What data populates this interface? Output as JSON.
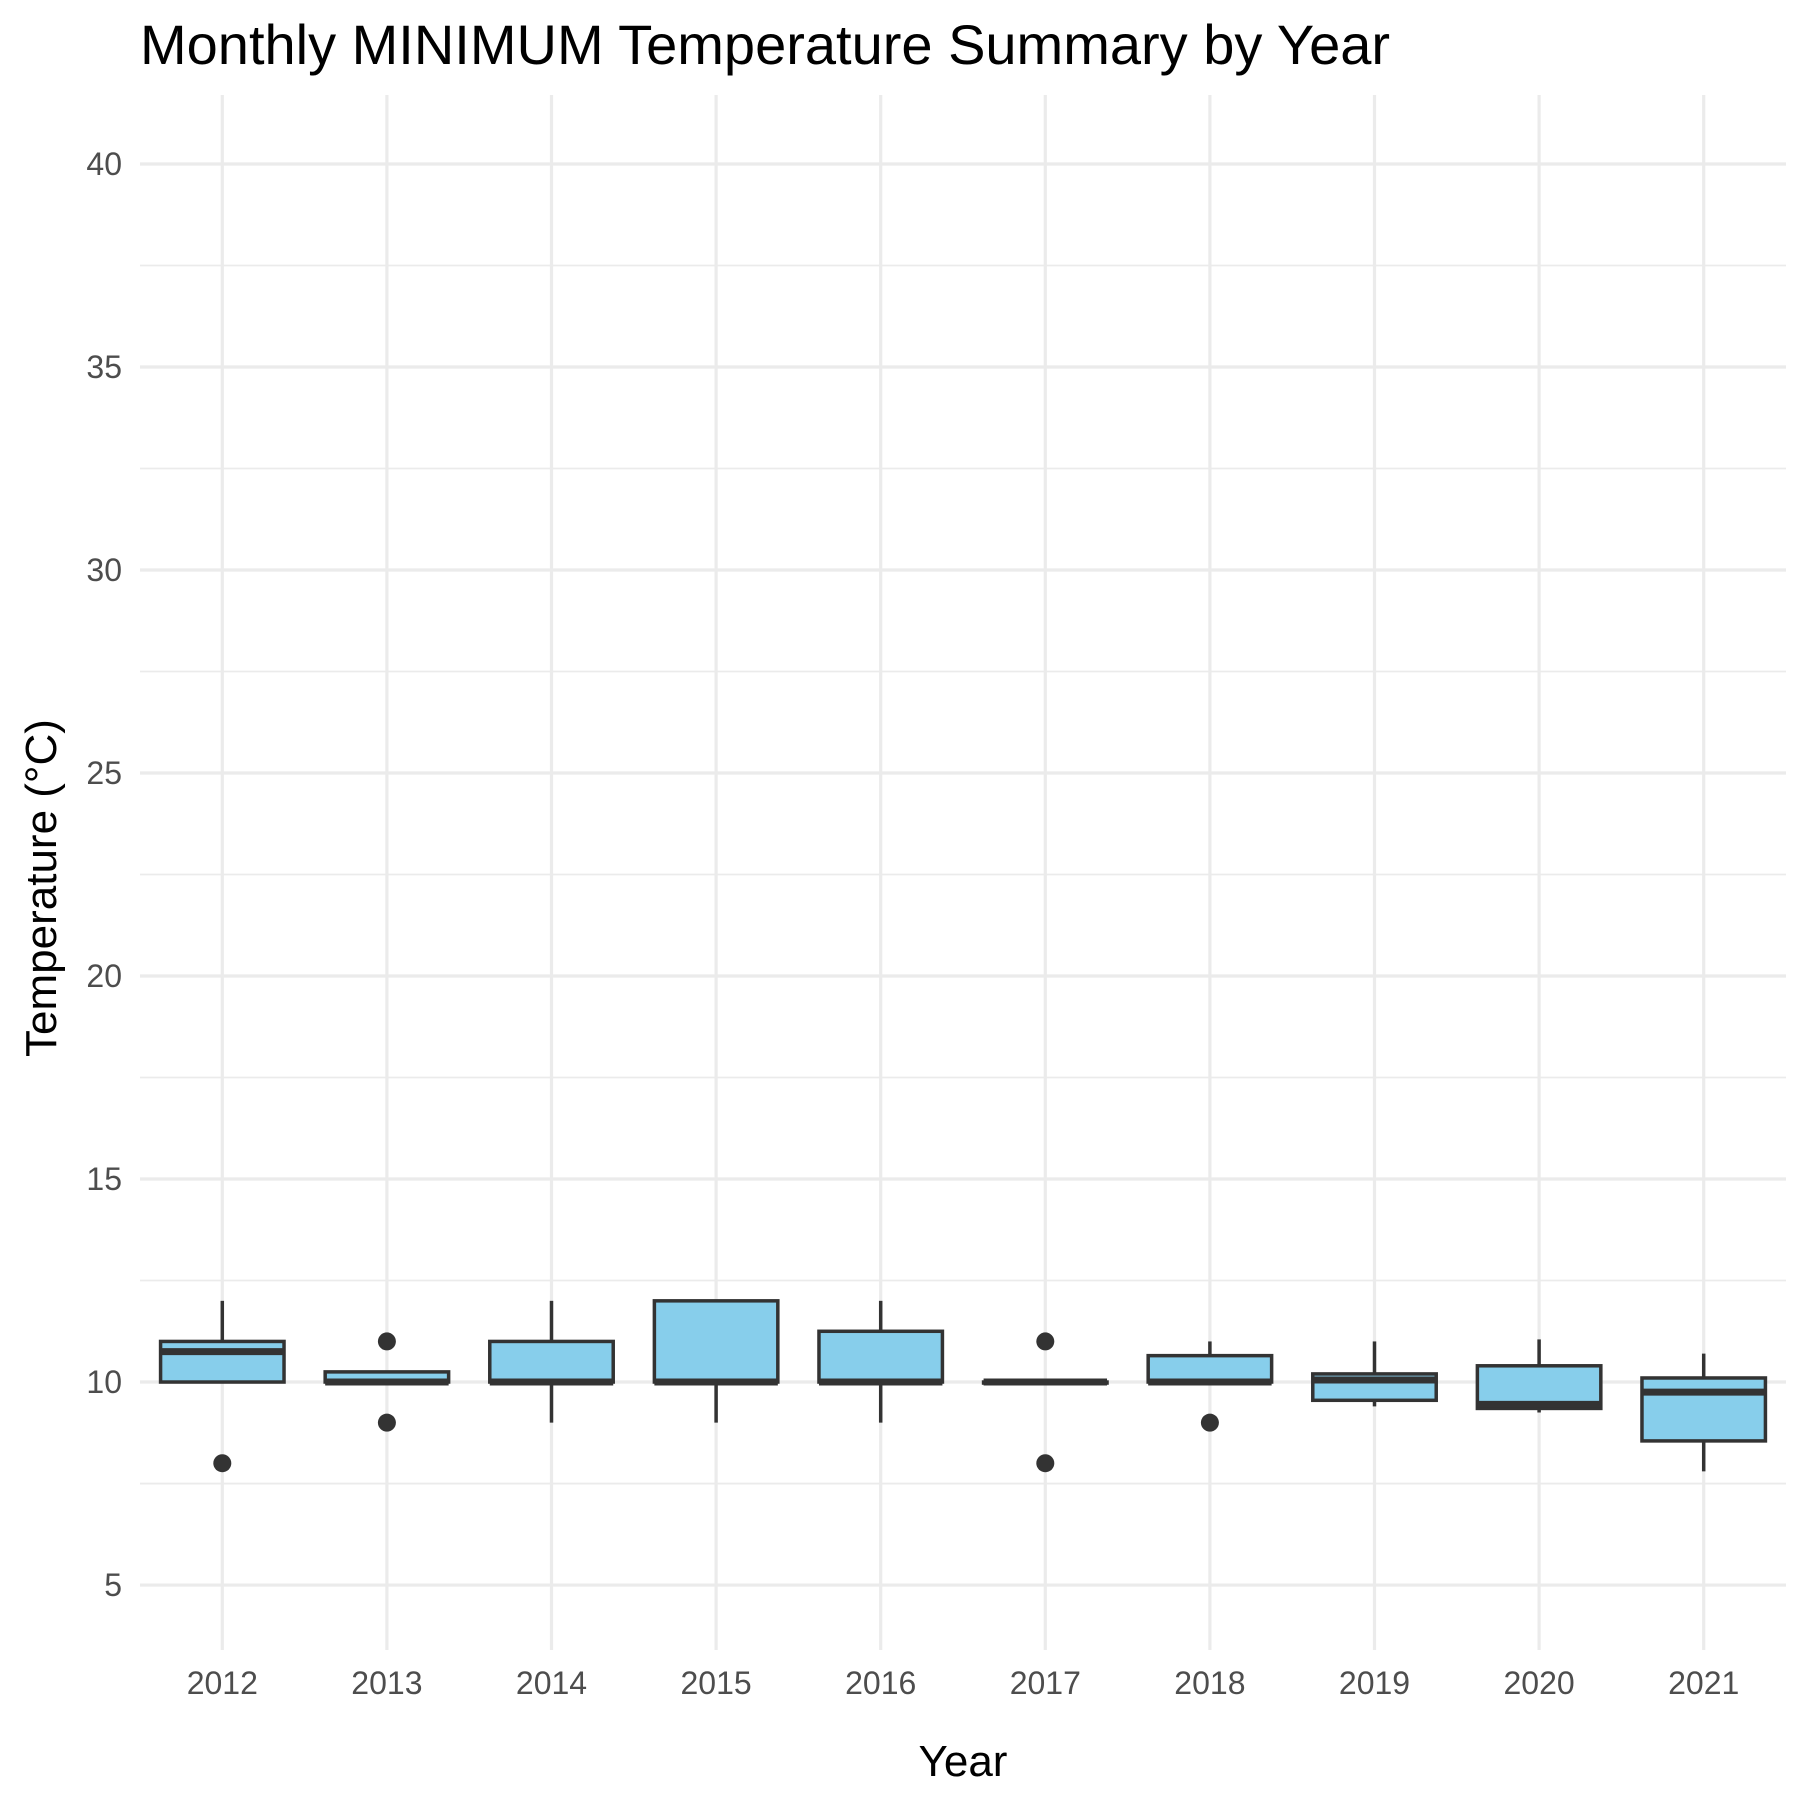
{
  "chart_data": {
    "type": "boxplot",
    "title": "Monthly MINIMUM Temperature Summary by Year",
    "xlabel": "Year",
    "ylabel": "Temperature (°C)",
    "ylim": [
      3.4,
      41.7
    ],
    "yticks": [
      5,
      10,
      15,
      20,
      25,
      30,
      35,
      40
    ],
    "grid": true,
    "colors": {
      "box_fill": "#87CEEB",
      "box_stroke": "#333333",
      "grid": "#ebebeb"
    },
    "categories": [
      "2012",
      "2013",
      "2014",
      "2015",
      "2016",
      "2017",
      "2018",
      "2019",
      "2020",
      "2021"
    ],
    "boxes": [
      {
        "year": "2012",
        "whisker_low": 10,
        "q1": 10,
        "median": 10.75,
        "q3": 11,
        "whisker_high": 12,
        "outliers": [
          8
        ]
      },
      {
        "year": "2013",
        "whisker_low": 10,
        "q1": 10,
        "median": 10,
        "q3": 10.25,
        "whisker_high": 10.25,
        "outliers": [
          11,
          9
        ]
      },
      {
        "year": "2014",
        "whisker_low": 9,
        "q1": 10,
        "median": 10,
        "q3": 11,
        "whisker_high": 12,
        "outliers": []
      },
      {
        "year": "2015",
        "whisker_low": 9,
        "q1": 10,
        "median": 10,
        "q3": 12,
        "whisker_high": 12,
        "outliers": []
      },
      {
        "year": "2016",
        "whisker_low": 9,
        "q1": 10,
        "median": 10,
        "q3": 11.25,
        "whisker_high": 12,
        "outliers": []
      },
      {
        "year": "2017",
        "whisker_low": 10,
        "q1": 10,
        "median": 10,
        "q3": 10,
        "whisker_high": 10,
        "outliers": [
          11,
          8
        ]
      },
      {
        "year": "2018",
        "whisker_low": 10,
        "q1": 10,
        "median": 10,
        "q3": 10.65,
        "whisker_high": 11,
        "outliers": [
          9
        ]
      },
      {
        "year": "2019",
        "whisker_low": 9.4,
        "q1": 9.55,
        "median": 10.05,
        "q3": 10.2,
        "whisker_high": 11,
        "outliers": []
      },
      {
        "year": "2020",
        "whisker_low": 9.25,
        "q1": 9.35,
        "median": 9.45,
        "q3": 10.4,
        "whisker_high": 11.05,
        "outliers": []
      },
      {
        "year": "2021",
        "whisker_low": 7.8,
        "q1": 8.55,
        "median": 9.75,
        "q3": 10.1,
        "whisker_high": 10.7,
        "outliers": []
      }
    ]
  }
}
